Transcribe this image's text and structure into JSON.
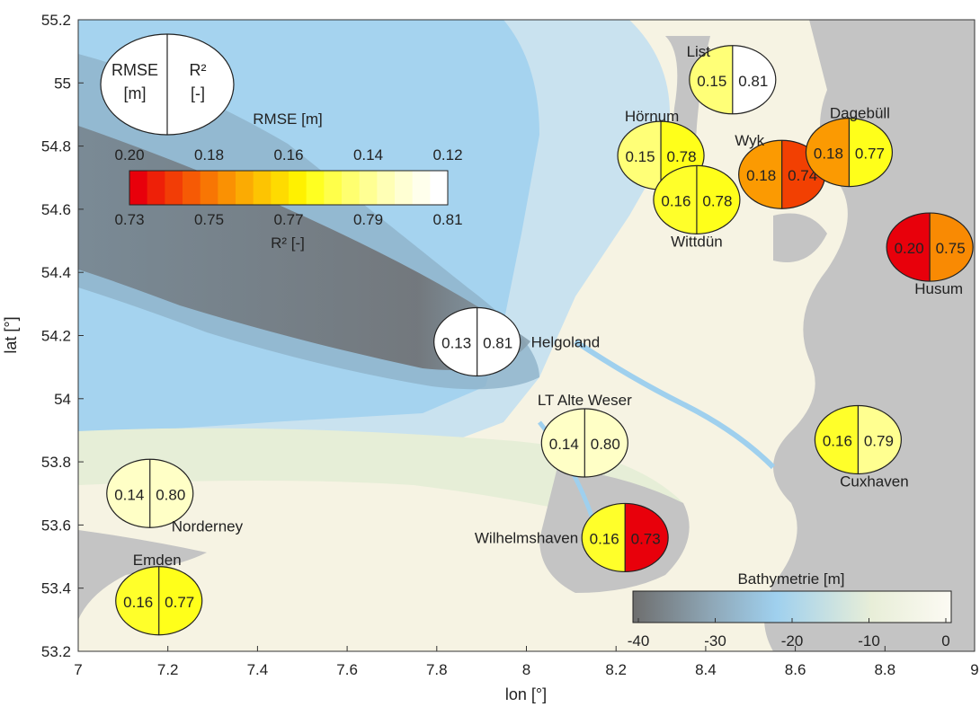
{
  "axes": {
    "xlabel": "lon [°]",
    "ylabel": "lat [°]",
    "xlim": [
      7,
      9
    ],
    "ylim": [
      53.2,
      55.2
    ],
    "xticks": [
      "7",
      "7.2",
      "7.4",
      "7.6",
      "7.8",
      "8",
      "8.2",
      "8.4",
      "8.6",
      "8.8",
      "9"
    ],
    "yticks": [
      "53.2",
      "53.4",
      "53.6",
      "53.8",
      "54",
      "54.2",
      "54.4",
      "54.6",
      "54.8",
      "55",
      "55.2"
    ]
  },
  "legend_key": {
    "left": "RMSE",
    "left_unit": "[m]",
    "right": "R²",
    "right_unit": "[-]"
  },
  "rmse_colorbar": {
    "title": "RMSE [m]",
    "top_ticks": [
      "0.20",
      "0.18",
      "0.16",
      "0.14",
      "0.12"
    ],
    "bottom_ticks": [
      "0.73",
      "0.75",
      "0.77",
      "0.79",
      "0.81"
    ],
    "bottom_label": "R² [-]",
    "colors": [
      "#e8000b",
      "#ee2008",
      "#f23d06",
      "#f65a05",
      "#f87604",
      "#fa9103",
      "#fbab03",
      "#fdc402",
      "#fedb01",
      "#fff100",
      "#ffff21",
      "#ffff4a",
      "#ffff6f",
      "#ffff93",
      "#ffffb5",
      "#ffffd3",
      "#ffffec",
      "#ffffff"
    ]
  },
  "bathy_colorbar": {
    "title": "Bathymetrie [m]",
    "ticks": [
      "-40",
      "-30",
      "-20",
      "-10",
      "0"
    ],
    "colors": [
      "#6e6e6e",
      "#8fa8b8",
      "#9fd0ee",
      "#e8eed8",
      "#fcfaf3"
    ]
  },
  "stations": [
    {
      "name": "List",
      "lon": 8.46,
      "lat": 55.01,
      "rmse": "0.15",
      "r2": "0.81",
      "c1": "#ffff77",
      "c2": "#ffffff",
      "label_dx": -38,
      "label_dy": -26,
      "anchor": "middle"
    },
    {
      "name": "Hörnum",
      "lon": 8.3,
      "lat": 54.77,
      "rmse": "0.15",
      "r2": "0.78",
      "c1": "#ffff77",
      "c2": "#ffff1a",
      "label_dx": -10,
      "label_dy": -38,
      "anchor": "middle"
    },
    {
      "name": "Wyk",
      "lon": 8.57,
      "lat": 54.71,
      "rmse": "0.18",
      "r2": "0.74",
      "c1": "#fb9a02",
      "c2": "#f24002",
      "label_dx": -36,
      "label_dy": -32,
      "anchor": "middle"
    },
    {
      "name": "Dagebüll",
      "lon": 8.72,
      "lat": 54.78,
      "rmse": "0.18",
      "r2": "0.77",
      "c1": "#fb9a02",
      "c2": "#ffff1a",
      "label_dx": 12,
      "label_dy": -38,
      "anchor": "middle"
    },
    {
      "name": "Wittdün",
      "lon": 8.38,
      "lat": 54.63,
      "rmse": "0.16",
      "r2": "0.78",
      "c1": "#ffff2a",
      "c2": "#ffff1a",
      "label_dx": 0,
      "label_dy": 52,
      "anchor": "middle"
    },
    {
      "name": "Husum",
      "lon": 8.9,
      "lat": 54.48,
      "rmse": "0.20",
      "r2": "0.75",
      "c1": "#e8000b",
      "c2": "#f98a03",
      "label_dx": 10,
      "label_dy": 52,
      "anchor": "middle"
    },
    {
      "name": "Helgoland",
      "lon": 7.89,
      "lat": 54.18,
      "rmse": "0.13",
      "r2": "0.81",
      "c1": "#ffffff",
      "c2": "#ffffff",
      "label_dx": 60,
      "label_dy": 6,
      "anchor": "start"
    },
    {
      "name": "LT Alte Weser",
      "lon": 8.13,
      "lat": 53.86,
      "rmse": "0.14",
      "r2": "0.80",
      "c1": "#ffffc6",
      "c2": "#ffffc6",
      "label_dx": 0,
      "label_dy": -42,
      "anchor": "middle"
    },
    {
      "name": "Cuxhaven",
      "lon": 8.74,
      "lat": 53.87,
      "rmse": "0.16",
      "r2": "0.79",
      "c1": "#ffff2a",
      "c2": "#ffff90",
      "label_dx": 18,
      "label_dy": 52,
      "anchor": "middle"
    },
    {
      "name": "Norderney",
      "lon": 7.16,
      "lat": 53.7,
      "rmse": "0.14",
      "r2": "0.80",
      "c1": "#ffffc6",
      "c2": "#ffffc6",
      "label_dx": 24,
      "label_dy": 42,
      "anchor": "start"
    },
    {
      "name": "Wilhelmshaven",
      "lon": 8.22,
      "lat": 53.56,
      "rmse": "0.16",
      "r2": "0.73",
      "c1": "#ffff2a",
      "c2": "#e8000b",
      "label_dx": -52,
      "label_dy": 6,
      "anchor": "end"
    },
    {
      "name": "Emden",
      "lon": 7.18,
      "lat": 53.36,
      "rmse": "0.16",
      "r2": "0.77",
      "c1": "#ffff2a",
      "c2": "#ffff1a",
      "label_dx": -2,
      "label_dy": -40,
      "anchor": "middle"
    }
  ]
}
